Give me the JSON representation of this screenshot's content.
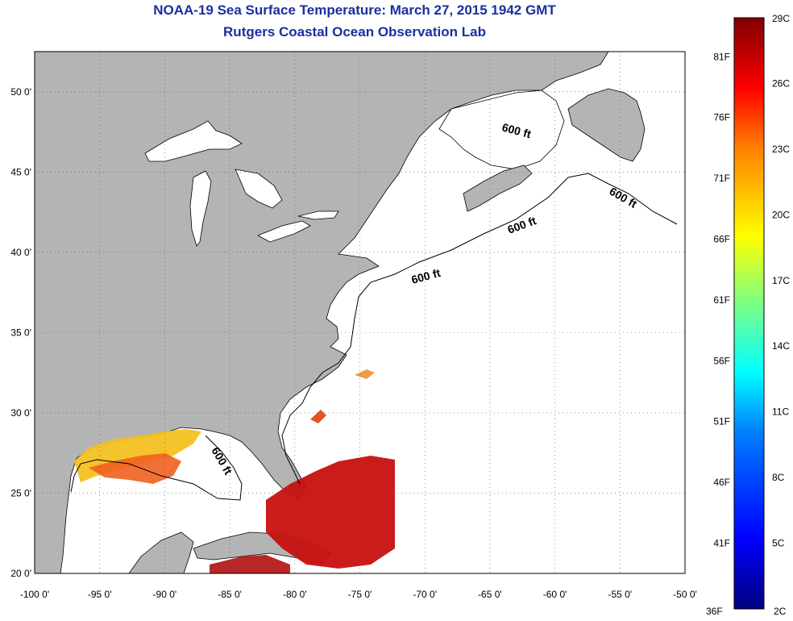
{
  "title": {
    "line1": "NOAA-19 Sea Surface Temperature:  March 27, 2015 1942 GMT",
    "line2": "Rutgers Coastal Ocean Observation Lab"
  },
  "map": {
    "lon_range": [
      -100,
      -50
    ],
    "lat_range": [
      20,
      52.5
    ],
    "x_ticks": [
      "-100 0'",
      "-95 0'",
      "-90 0'",
      "-85 0'",
      "-80 0'",
      "-75 0'",
      "-70 0'",
      "-65 0'",
      "-60 0'",
      "-55 0'",
      "-50 0'"
    ],
    "y_ticks": [
      "50 0'",
      "45 0'",
      "40 0'",
      "35 0'",
      "30 0'",
      "25 0'",
      "20 0'"
    ],
    "grid": "dotted",
    "land_color": "#b4b4b4",
    "contour_label": "600 ft",
    "contour_labels": [
      "600 ft",
      "600 ft",
      "600 ft",
      "600 ft",
      "600 ft"
    ]
  },
  "colorbar": {
    "min_label": "36F",
    "max_label": "29C",
    "bottom_c": "2C",
    "fahrenheit_labels": [
      "81F",
      "76F",
      "71F",
      "66F",
      "61F",
      "56F",
      "51F",
      "46F",
      "41F"
    ],
    "celsius_labels": [
      "26C",
      "23C",
      "20C",
      "17C",
      "14C",
      "11C",
      "8C",
      "5C"
    ],
    "colors": [
      "#000080",
      "#0000ff",
      "#0080ff",
      "#00ffff",
      "#80ff80",
      "#ffff00",
      "#ff8000",
      "#ff0000",
      "#800000"
    ]
  }
}
